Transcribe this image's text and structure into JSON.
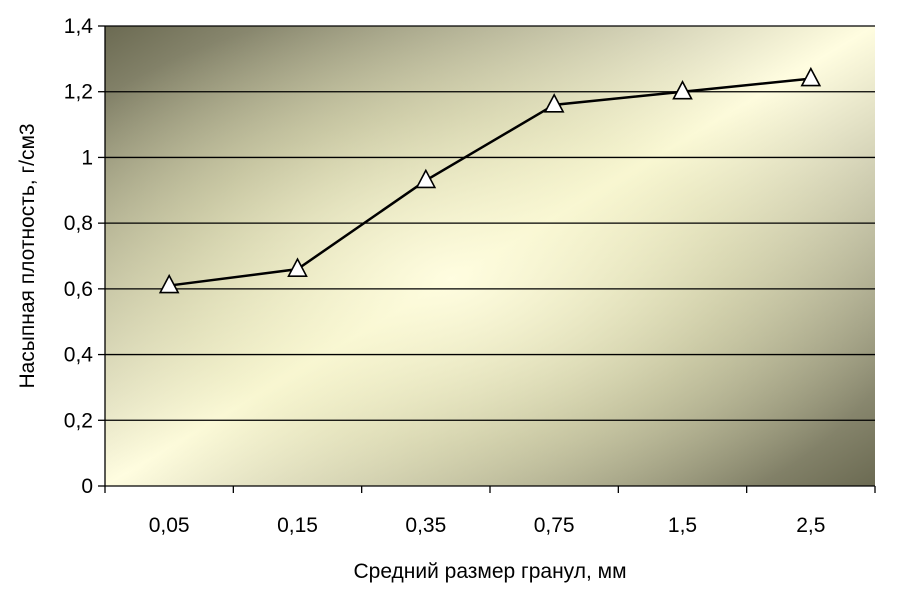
{
  "chart_data": {
    "type": "line",
    "xlabel": "Средний размер гранул, мм",
    "ylabel": "Насыпная плотность, г/см3",
    "categories": [
      "0,05",
      "0,15",
      "0,35",
      "0,75",
      "1,5",
      "2,5"
    ],
    "series": [
      {
        "values": [
          0.61,
          0.66,
          0.93,
          1.16,
          1.2,
          1.24
        ]
      }
    ],
    "ylim": [
      0,
      1.4
    ],
    "yticks": [
      0,
      0.2,
      0.4,
      0.6,
      0.8,
      1,
      1.2,
      1.4
    ],
    "ytick_labels": [
      "0",
      "0,2",
      "0,4",
      "0,6",
      "0,8",
      "1",
      "1,2",
      "1,4"
    ],
    "grid": true,
    "marker": "triangle",
    "colors": {
      "line": "#000000",
      "marker_fill": "#ffffff",
      "gradient_light": "#fffde0",
      "gradient_mid": "#ecebb6",
      "gradient_dark": "#6b6a52"
    }
  }
}
